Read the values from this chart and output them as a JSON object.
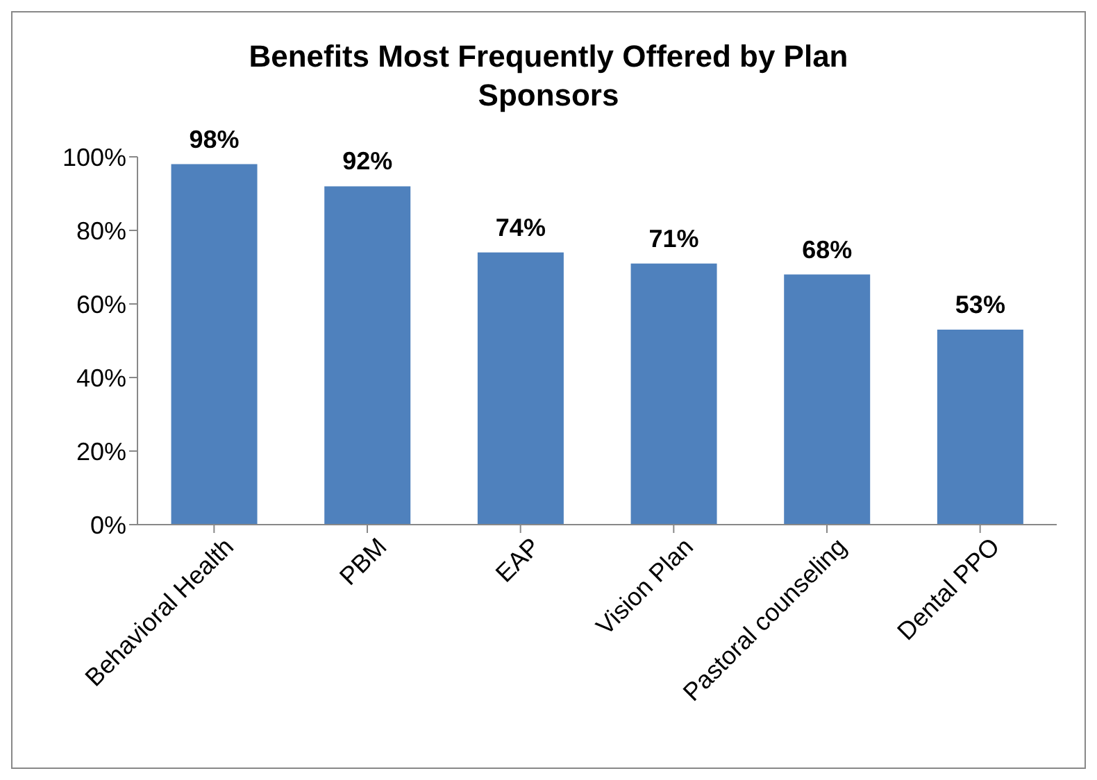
{
  "chart_data": {
    "type": "bar",
    "title": "Benefits Most Frequently Offered by Plan Sponsors",
    "categories": [
      "Behavioral Health",
      "PBM",
      "EAP",
      "Vision Plan",
      "Pastoral counseling",
      "Dental PPO"
    ],
    "values": [
      98,
      92,
      74,
      71,
      68,
      53
    ],
    "value_labels": [
      "98%",
      "92%",
      "74%",
      "71%",
      "68%",
      "53%"
    ],
    "color": "#4f81bd",
    "ylim": [
      0,
      100
    ],
    "yticks": [
      {
        "value": 0,
        "label": "0%"
      },
      {
        "value": 20,
        "label": "20%"
      },
      {
        "value": 40,
        "label": "40%"
      },
      {
        "value": 60,
        "label": "60%"
      },
      {
        "value": 80,
        "label": "80%"
      },
      {
        "value": 100,
        "label": "100%"
      }
    ],
    "grid": false,
    "legend": false
  }
}
